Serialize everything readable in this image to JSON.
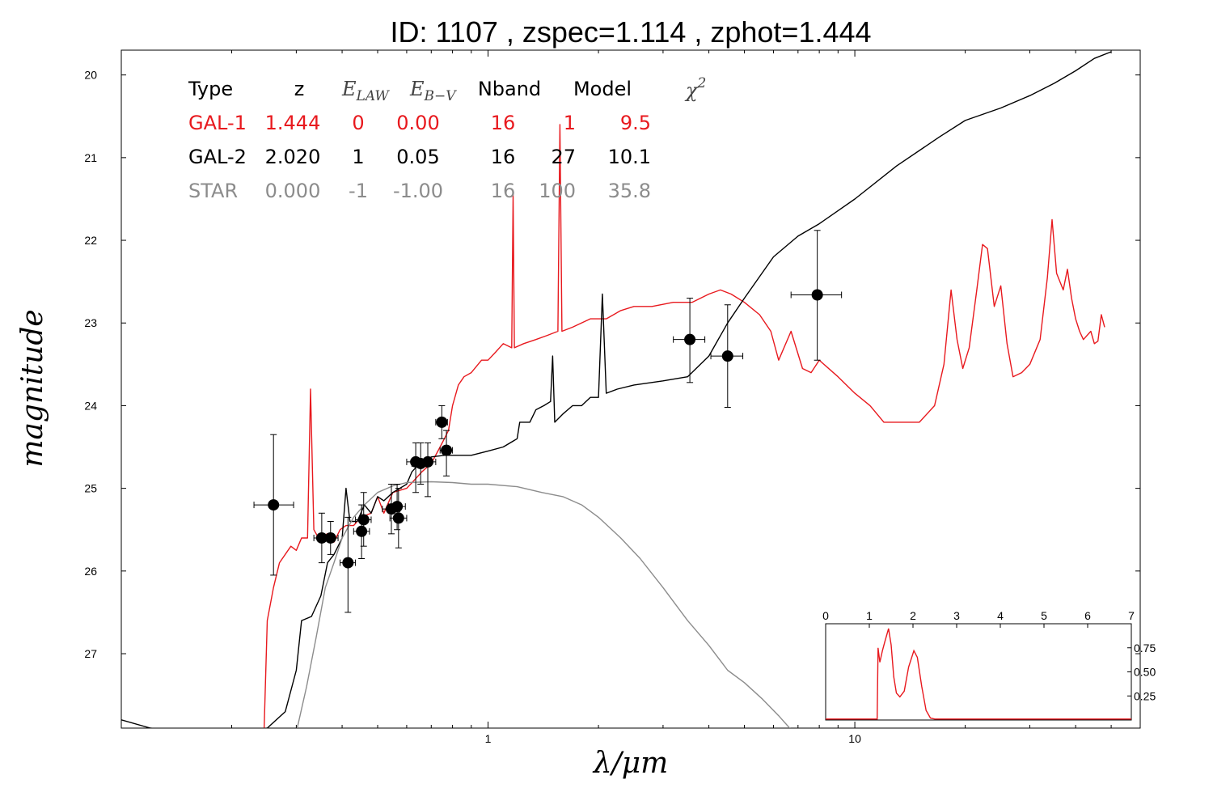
{
  "title": "ID:  1107  , zspec=1.114 , zphot=1.444",
  "chart_data": {
    "type": "line",
    "xscale": "log",
    "xlabel": "λ/μm",
    "ylabel": "magnitude",
    "xlim": [
      0.1,
      60
    ],
    "ylim": [
      27.9,
      19.7
    ],
    "x_ticks": [
      1,
      10
    ],
    "y_ticks": [
      20,
      21,
      22,
      23,
      24,
      25,
      26,
      27
    ],
    "colors": {
      "GAL-1": "#e8191e",
      "GAL-2": "#000000",
      "STAR": "#8c8c8c",
      "points": "#000000"
    },
    "table": {
      "headers": [
        "Type",
        "z",
        "E_LAW",
        "E_B-V",
        "Nband",
        "Model",
        "χ²"
      ],
      "rows": [
        {
          "cells": [
            "GAL-1",
            "1.444",
            "0",
            "0.00",
            "16",
            "1",
            "9.5"
          ],
          "color": "#e8191e"
        },
        {
          "cells": [
            "GAL-2",
            "2.020",
            "1",
            "0.05",
            "16",
            "27",
            "10.1"
          ],
          "color": "#000000"
        },
        {
          "cells": [
            "STAR",
            "0.000",
            "-1",
            "-1.00",
            "16",
            "100",
            "35.8"
          ],
          "color": "#8c8c8c"
        }
      ]
    },
    "points": [
      {
        "x": 0.26,
        "y": 25.2,
        "xerr": [
          0.23,
          0.295
        ],
        "yerr": [
          24.35,
          26.05
        ]
      },
      {
        "x": 0.352,
        "y": 25.6,
        "xerr": [
          0.335,
          0.37
        ],
        "yerr": [
          25.3,
          25.9
        ]
      },
      {
        "x": 0.372,
        "y": 25.6,
        "xerr": [
          0.355,
          0.39
        ],
        "yerr": [
          25.4,
          25.8
        ]
      },
      {
        "x": 0.415,
        "y": 25.9,
        "xerr": [
          0.395,
          0.435
        ],
        "yerr": [
          25.35,
          26.5
        ]
      },
      {
        "x": 0.452,
        "y": 25.52,
        "xerr": [
          0.43,
          0.475
        ],
        "yerr": [
          25.2,
          25.85
        ]
      },
      {
        "x": 0.458,
        "y": 25.38,
        "xerr": [
          0.435,
          0.48
        ],
        "yerr": [
          25.05,
          25.7
        ]
      },
      {
        "x": 0.545,
        "y": 25.25,
        "xerr": [
          0.515,
          0.575
        ],
        "yerr": [
          24.95,
          25.55
        ]
      },
      {
        "x": 0.565,
        "y": 25.22,
        "xerr": [
          0.535,
          0.595
        ],
        "yerr": [
          24.95,
          25.5
        ]
      },
      {
        "x": 0.57,
        "y": 25.36,
        "xerr": [
          0.54,
          0.6
        ],
        "yerr": [
          25.0,
          25.72
        ]
      },
      {
        "x": 0.635,
        "y": 24.68,
        "xerr": [
          0.6,
          0.67
        ],
        "yerr": [
          24.45,
          25.05
        ]
      },
      {
        "x": 0.655,
        "y": 24.7,
        "xerr": [
          0.62,
          0.69
        ],
        "yerr": [
          24.45,
          24.95
        ]
      },
      {
        "x": 0.685,
        "y": 24.68,
        "xerr": [
          0.65,
          0.72
        ],
        "yerr": [
          24.45,
          25.1
        ]
      },
      {
        "x": 0.748,
        "y": 24.2,
        "xerr": [
          0.72,
          0.775
        ],
        "yerr": [
          24.0,
          24.4
        ]
      },
      {
        "x": 0.77,
        "y": 24.54,
        "xerr": [
          0.74,
          0.8
        ],
        "yerr": [
          24.3,
          24.85
        ]
      },
      {
        "x": 3.55,
        "y": 23.2,
        "xerr": [
          3.2,
          3.9
        ],
        "yerr": [
          22.7,
          23.72
        ]
      },
      {
        "x": 4.5,
        "y": 23.4,
        "xerr": [
          4.05,
          4.95
        ],
        "yerr": [
          22.78,
          24.02
        ]
      },
      {
        "x": 7.9,
        "y": 22.66,
        "xerr": [
          6.7,
          9.2
        ],
        "yerr": [
          21.88,
          23.45
        ]
      }
    ],
    "series": [
      {
        "name": "GAL-1",
        "color": "#e8191e",
        "points": [
          [
            0.245,
            27.95
          ],
          [
            0.25,
            26.6
          ],
          [
            0.26,
            26.2
          ],
          [
            0.27,
            25.9
          ],
          [
            0.29,
            25.7
          ],
          [
            0.3,
            25.75
          ],
          [
            0.31,
            25.6
          ],
          [
            0.322,
            25.6
          ],
          [
            0.328,
            23.8
          ],
          [
            0.335,
            25.5
          ],
          [
            0.345,
            25.6
          ],
          [
            0.365,
            25.55
          ],
          [
            0.38,
            25.65
          ],
          [
            0.395,
            25.5
          ],
          [
            0.41,
            25.45
          ],
          [
            0.43,
            25.45
          ],
          [
            0.45,
            25.35
          ],
          [
            0.48,
            25.3
          ],
          [
            0.5,
            25.1
          ],
          [
            0.52,
            25.3
          ],
          [
            0.55,
            25.05
          ],
          [
            0.6,
            25.0
          ],
          [
            0.63,
            24.9
          ],
          [
            0.66,
            24.8
          ],
          [
            0.7,
            24.7
          ],
          [
            0.74,
            24.5
          ],
          [
            0.76,
            24.4
          ],
          [
            0.78,
            24.3
          ],
          [
            0.8,
            24.0
          ],
          [
            0.83,
            23.75
          ],
          [
            0.86,
            23.65
          ],
          [
            0.9,
            23.6
          ],
          [
            0.96,
            23.45
          ],
          [
            1.0,
            23.45
          ],
          [
            1.05,
            23.35
          ],
          [
            1.1,
            23.25
          ],
          [
            1.16,
            23.3
          ],
          [
            1.17,
            21.45
          ],
          [
            1.18,
            23.3
          ],
          [
            1.25,
            23.25
          ],
          [
            1.35,
            23.2
          ],
          [
            1.45,
            23.15
          ],
          [
            1.55,
            23.1
          ],
          [
            1.57,
            20.6
          ],
          [
            1.59,
            23.1
          ],
          [
            1.7,
            23.05
          ],
          [
            1.9,
            22.95
          ],
          [
            2.1,
            22.95
          ],
          [
            2.3,
            22.85
          ],
          [
            2.5,
            22.8
          ],
          [
            2.8,
            22.8
          ],
          [
            3.2,
            22.75
          ],
          [
            3.6,
            22.75
          ],
          [
            4.0,
            22.65
          ],
          [
            4.3,
            22.6
          ],
          [
            4.6,
            22.65
          ],
          [
            5.0,
            22.75
          ],
          [
            5.5,
            22.9
          ],
          [
            5.9,
            23.1
          ],
          [
            6.2,
            23.45
          ],
          [
            6.7,
            23.1
          ],
          [
            7.2,
            23.55
          ],
          [
            7.6,
            23.6
          ],
          [
            8.0,
            23.45
          ],
          [
            9.0,
            23.65
          ],
          [
            10.0,
            23.85
          ],
          [
            11.0,
            24.0
          ],
          [
            12.0,
            24.2
          ],
          [
            13.0,
            24.2
          ],
          [
            15.0,
            24.2
          ],
          [
            16.5,
            24.0
          ],
          [
            17.5,
            23.5
          ],
          [
            18.3,
            22.6
          ],
          [
            19.0,
            23.2
          ],
          [
            19.7,
            23.55
          ],
          [
            20.5,
            23.3
          ],
          [
            21.5,
            22.6
          ],
          [
            22.3,
            22.05
          ],
          [
            23.0,
            22.1
          ],
          [
            24.0,
            22.8
          ],
          [
            25.0,
            22.55
          ],
          [
            26.0,
            23.25
          ],
          [
            27.0,
            23.65
          ],
          [
            28.5,
            23.6
          ],
          [
            30.0,
            23.5
          ],
          [
            32.0,
            23.2
          ],
          [
            33.5,
            22.45
          ],
          [
            34.5,
            21.75
          ],
          [
            35.5,
            22.4
          ],
          [
            37.0,
            22.6
          ],
          [
            38.0,
            22.35
          ],
          [
            39.0,
            22.7
          ],
          [
            40.0,
            22.95
          ],
          [
            41.0,
            23.1
          ],
          [
            42.0,
            23.2
          ],
          [
            44.0,
            23.1
          ],
          [
            45.0,
            23.25
          ],
          [
            46.0,
            23.22
          ],
          [
            47.0,
            22.9
          ],
          [
            48.0,
            23.05
          ]
        ]
      },
      {
        "name": "GAL-2",
        "color": "#000000",
        "points": [
          [
            0.1,
            27.8
          ],
          [
            0.12,
            27.9
          ],
          [
            0.15,
            27.95
          ],
          [
            0.2,
            27.95
          ],
          [
            0.25,
            27.9
          ],
          [
            0.28,
            27.7
          ],
          [
            0.3,
            27.2
          ],
          [
            0.31,
            26.6
          ],
          [
            0.33,
            26.55
          ],
          [
            0.35,
            26.3
          ],
          [
            0.365,
            25.9
          ],
          [
            0.38,
            25.8
          ],
          [
            0.395,
            25.65
          ],
          [
            0.4,
            25.6
          ],
          [
            0.41,
            25.0
          ],
          [
            0.42,
            25.4
          ],
          [
            0.44,
            25.4
          ],
          [
            0.46,
            25.2
          ],
          [
            0.48,
            25.3
          ],
          [
            0.5,
            25.1
          ],
          [
            0.52,
            25.15
          ],
          [
            0.55,
            25.05
          ],
          [
            0.6,
            24.95
          ],
          [
            0.62,
            24.8
          ],
          [
            0.65,
            24.7
          ],
          [
            0.7,
            24.62
          ],
          [
            0.76,
            24.6
          ],
          [
            0.8,
            24.6
          ],
          [
            0.9,
            24.6
          ],
          [
            1.0,
            24.55
          ],
          [
            1.1,
            24.5
          ],
          [
            1.2,
            24.4
          ],
          [
            1.22,
            24.2
          ],
          [
            1.3,
            24.2
          ],
          [
            1.35,
            24.05
          ],
          [
            1.42,
            24.0
          ],
          [
            1.48,
            23.95
          ],
          [
            1.5,
            23.4
          ],
          [
            1.52,
            24.2
          ],
          [
            1.6,
            24.1
          ],
          [
            1.7,
            24.0
          ],
          [
            1.8,
            24.0
          ],
          [
            1.9,
            23.9
          ],
          [
            2.0,
            23.9
          ],
          [
            2.05,
            22.65
          ],
          [
            2.1,
            23.85
          ],
          [
            2.25,
            23.8
          ],
          [
            2.5,
            23.75
          ],
          [
            3.0,
            23.7
          ],
          [
            3.5,
            23.65
          ],
          [
            4.0,
            23.4
          ],
          [
            4.5,
            23.0
          ],
          [
            5.0,
            22.7
          ],
          [
            6.0,
            22.2
          ],
          [
            7.0,
            21.95
          ],
          [
            8.0,
            21.8
          ],
          [
            10.0,
            21.5
          ],
          [
            13.0,
            21.1
          ],
          [
            17.0,
            20.75
          ],
          [
            20.0,
            20.55
          ],
          [
            25.0,
            20.4
          ],
          [
            30.0,
            20.25
          ],
          [
            35.0,
            20.1
          ],
          [
            40.0,
            19.95
          ],
          [
            45.0,
            19.8
          ],
          [
            50.0,
            19.72
          ]
        ]
      },
      {
        "name": "STAR",
        "color": "#8c8c8c",
        "points": [
          [
            0.3,
            27.95
          ],
          [
            0.32,
            27.4
          ],
          [
            0.34,
            26.8
          ],
          [
            0.36,
            26.2
          ],
          [
            0.38,
            25.9
          ],
          [
            0.4,
            25.6
          ],
          [
            0.43,
            25.35
          ],
          [
            0.46,
            25.2
          ],
          [
            0.5,
            25.05
          ],
          [
            0.55,
            24.97
          ],
          [
            0.6,
            24.93
          ],
          [
            0.7,
            24.92
          ],
          [
            0.8,
            24.93
          ],
          [
            0.9,
            24.95
          ],
          [
            1.0,
            24.95
          ],
          [
            1.2,
            24.98
          ],
          [
            1.4,
            25.05
          ],
          [
            1.6,
            25.1
          ],
          [
            1.8,
            25.2
          ],
          [
            2.0,
            25.35
          ],
          [
            2.3,
            25.6
          ],
          [
            2.6,
            25.85
          ],
          [
            3.0,
            26.2
          ],
          [
            3.5,
            26.6
          ],
          [
            4.0,
            26.9
          ],
          [
            4.5,
            27.2
          ],
          [
            5.0,
            27.35
          ],
          [
            5.6,
            27.55
          ],
          [
            6.2,
            27.75
          ],
          [
            6.8,
            27.95
          ]
        ]
      }
    ],
    "inset": {
      "xlim": [
        0,
        7
      ],
      "x_ticks": [
        0,
        1,
        2,
        3,
        4,
        5,
        6,
        7
      ],
      "y_ticks": [
        0.25,
        0.5,
        0.75
      ],
      "ylim": [
        0,
        1.0
      ],
      "curve": [
        [
          0,
          0.01
        ],
        [
          1.18,
          0.01
        ],
        [
          1.2,
          0.75
        ],
        [
          1.24,
          0.6
        ],
        [
          1.3,
          0.72
        ],
        [
          1.36,
          0.82
        ],
        [
          1.44,
          0.95
        ],
        [
          1.5,
          0.78
        ],
        [
          1.56,
          0.45
        ],
        [
          1.62,
          0.28
        ],
        [
          1.7,
          0.24
        ],
        [
          1.8,
          0.3
        ],
        [
          1.9,
          0.55
        ],
        [
          2.02,
          0.72
        ],
        [
          2.1,
          0.65
        ],
        [
          2.2,
          0.35
        ],
        [
          2.3,
          0.1
        ],
        [
          2.4,
          0.02
        ],
        [
          2.5,
          0.01
        ],
        [
          7,
          0.01
        ]
      ]
    }
  }
}
